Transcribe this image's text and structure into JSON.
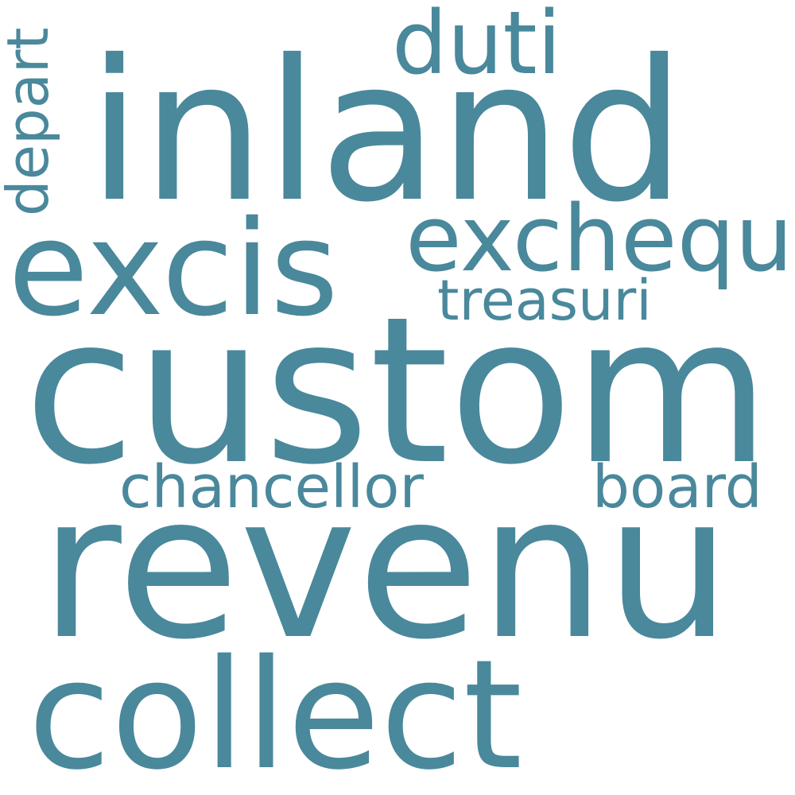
{
  "colors": {
    "background": "#ffffff",
    "word": "#4a889c"
  },
  "words": [
    {
      "id": "inland",
      "text": "inland"
    },
    {
      "id": "custom",
      "text": "custom"
    },
    {
      "id": "revenu",
      "text": "revenu"
    },
    {
      "id": "collect",
      "text": "collect"
    },
    {
      "id": "excis",
      "text": "excis"
    },
    {
      "id": "exchequ",
      "text": "exchequ"
    },
    {
      "id": "duti",
      "text": "duti"
    },
    {
      "id": "treasuri",
      "text": "treasuri"
    },
    {
      "id": "chancellor",
      "text": "chancellor"
    },
    {
      "id": "board",
      "text": "board"
    },
    {
      "id": "depart",
      "text": "depart"
    }
  ]
}
